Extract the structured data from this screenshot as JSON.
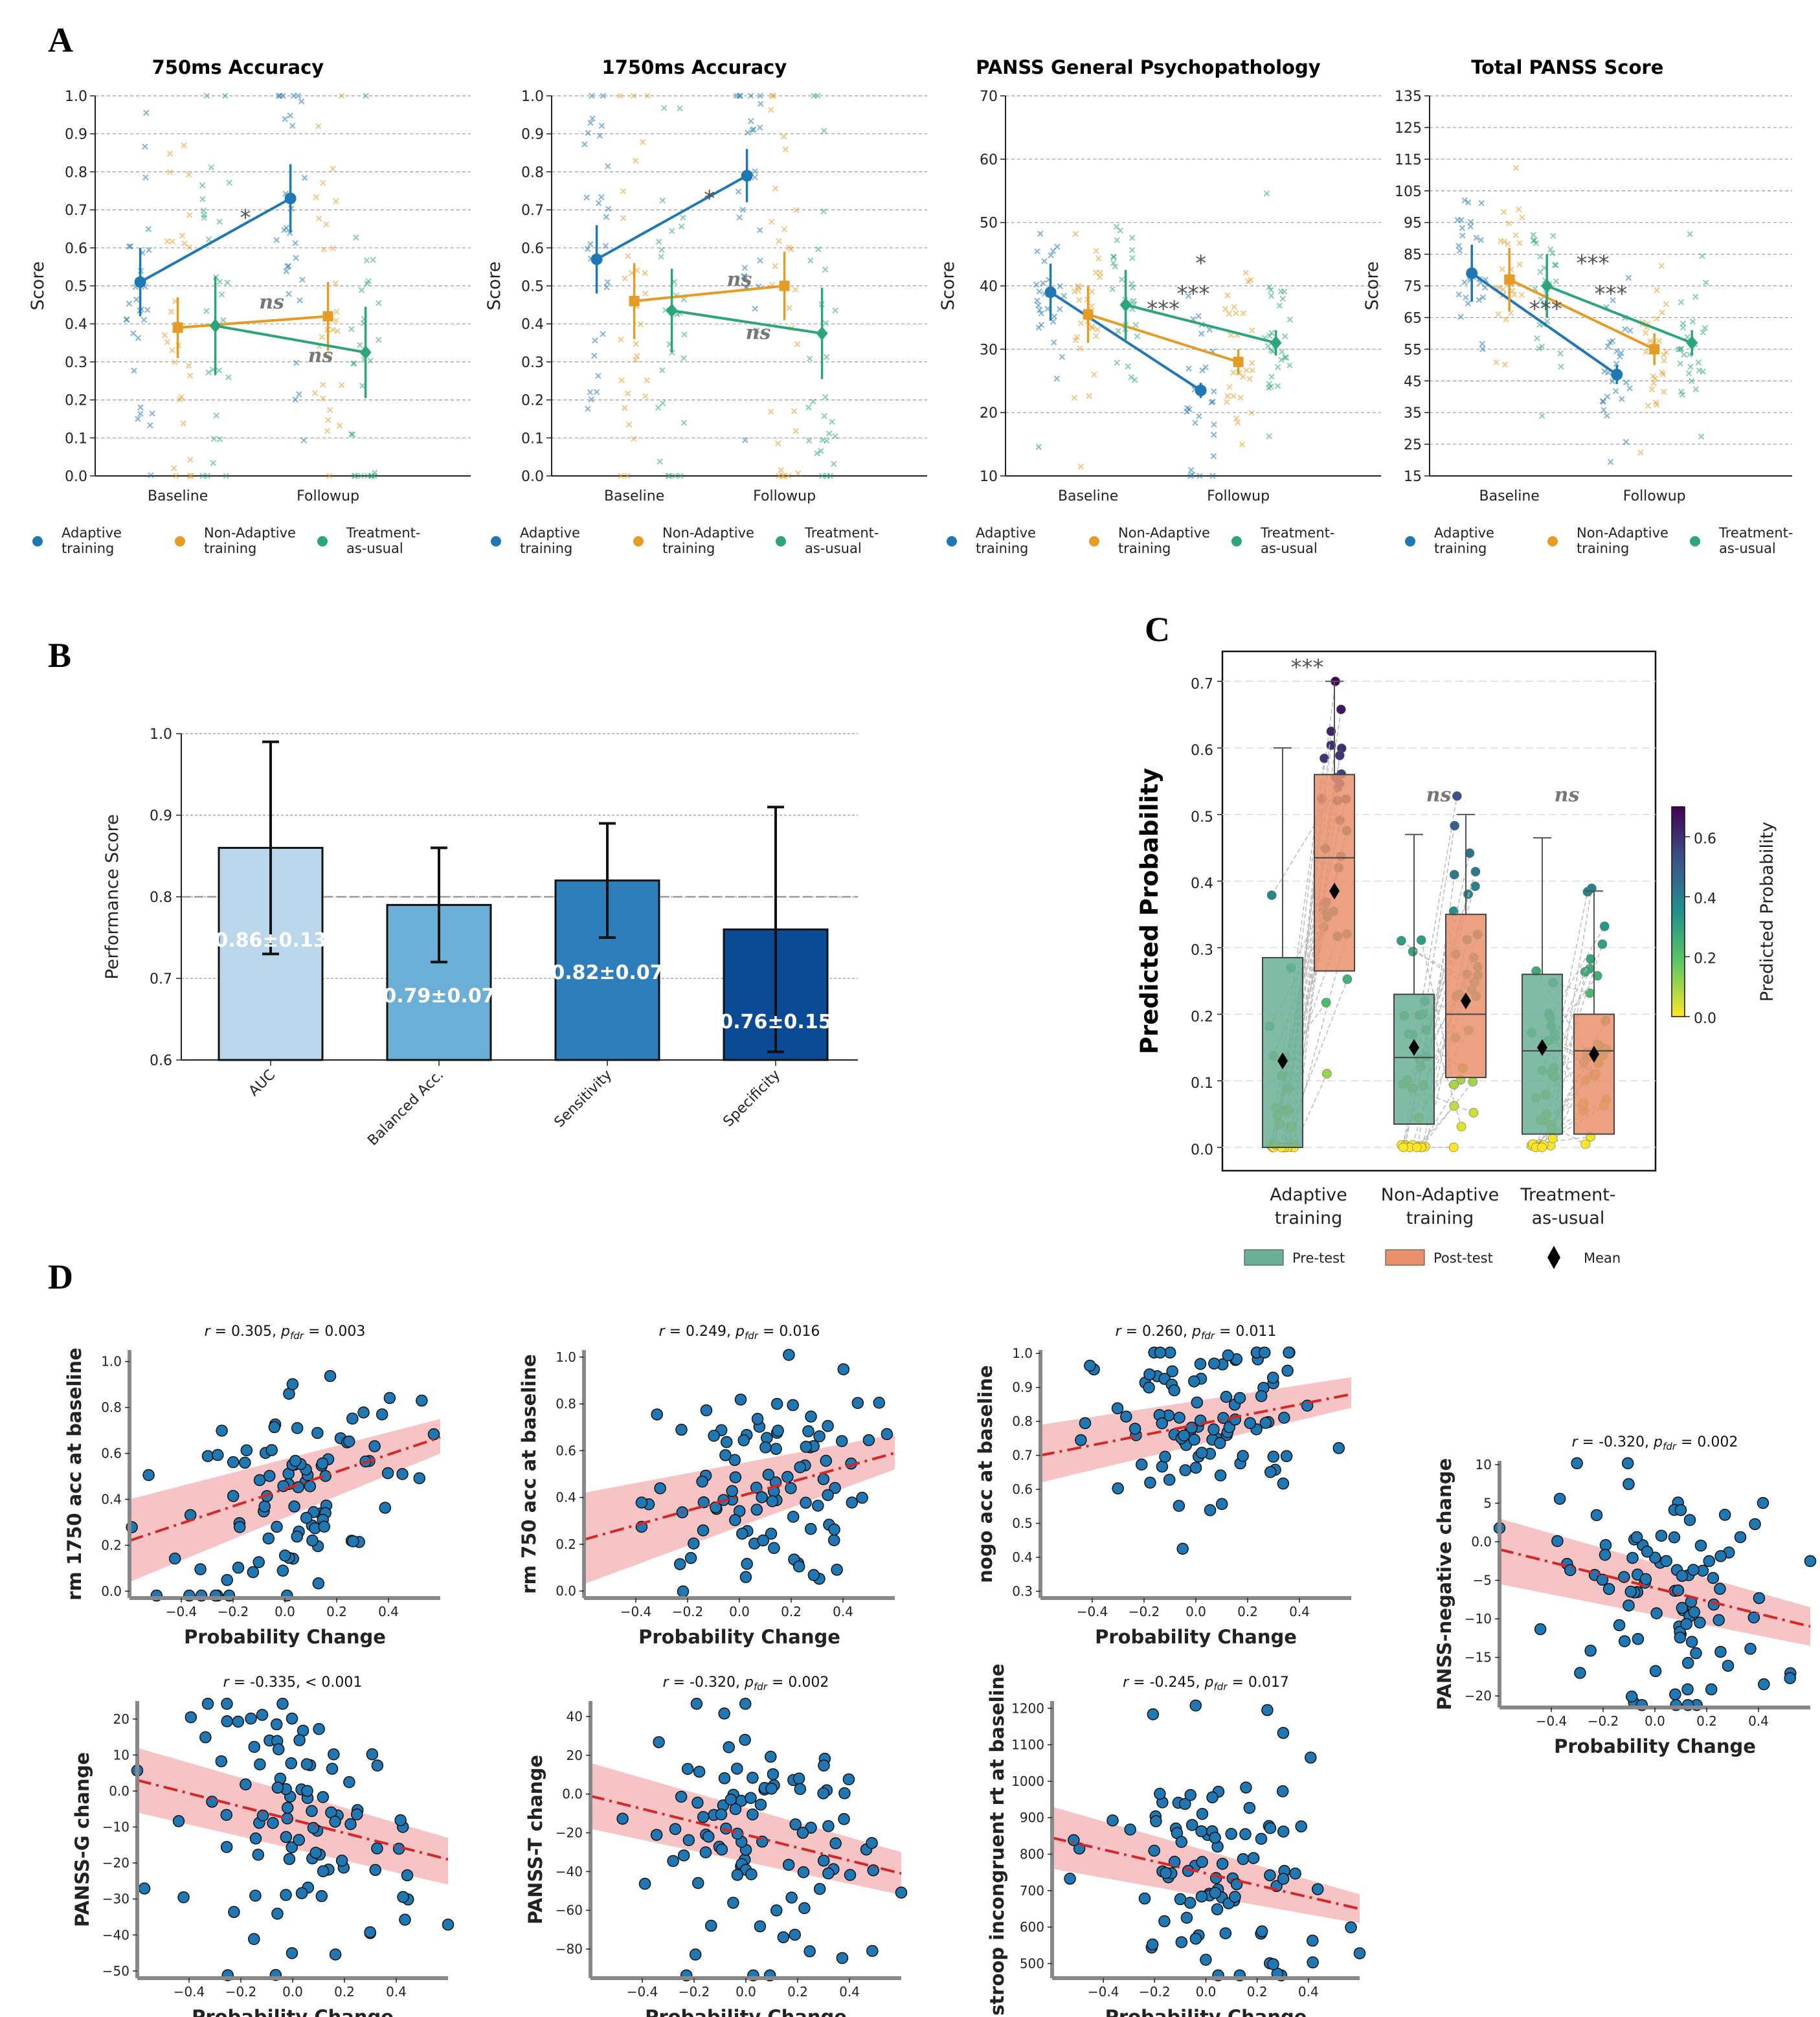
{
  "colors": {
    "adaptive": "#1f77b4",
    "nonadaptive": "#e69c24",
    "tau": "#2ca57a",
    "pretest_box": "#6aaf96",
    "posttest_box": "#e8906c",
    "reg_line": "#d62728",
    "reg_band": "#f5b5b8",
    "scatter_fill": "#1f77b4",
    "bar_colors": [
      "#bad6eb",
      "#6baed6",
      "#2f7ebc",
      "#0b4a94"
    ]
  },
  "panel_letters": {
    "a": "A",
    "b": "B",
    "c": "C",
    "d": "D"
  },
  "legend_a": [
    "Adaptive training",
    "Non-Adaptive training",
    "Treatment-as-usual"
  ],
  "chart_data": [
    {
      "id": "A1",
      "type": "line",
      "title": "750ms Accuracy",
      "ylabel": "Score",
      "categories": [
        "Baseline",
        "Followup"
      ],
      "ylim": [
        0,
        1.0
      ],
      "yticks": [
        0.0,
        0.1,
        0.2,
        0.3,
        0.4,
        0.5,
        0.6,
        0.7,
        0.8,
        0.9,
        1.0
      ],
      "series": [
        {
          "name": "Adaptive training",
          "values": [
            0.51,
            0.73
          ],
          "err": [
            0.09,
            0.09
          ],
          "marker": "circle"
        },
        {
          "name": "Non-Adaptive training",
          "values": [
            0.39,
            0.42
          ],
          "err": [
            0.08,
            0.09
          ],
          "marker": "square"
        },
        {
          "name": "Treatment-as-usual",
          "values": [
            0.395,
            0.325
          ],
          "err": [
            0.13,
            0.12
          ],
          "marker": "diamond"
        }
      ],
      "annotations": [
        "*",
        "ns",
        "ns"
      ]
    },
    {
      "id": "A2",
      "type": "line",
      "title": "1750ms Accuracy",
      "ylabel": "Score",
      "categories": [
        "Baseline",
        "Followup"
      ],
      "ylim": [
        0,
        1.0
      ],
      "yticks": [
        0.0,
        0.1,
        0.2,
        0.3,
        0.4,
        0.5,
        0.6,
        0.7,
        0.8,
        0.9,
        1.0
      ],
      "series": [
        {
          "name": "Adaptive training",
          "values": [
            0.57,
            0.79
          ],
          "err": [
            0.09,
            0.07
          ],
          "marker": "circle"
        },
        {
          "name": "Non-Adaptive training",
          "values": [
            0.46,
            0.5
          ],
          "err": [
            0.1,
            0.09
          ],
          "marker": "square"
        },
        {
          "name": "Treatment-as-usual",
          "values": [
            0.435,
            0.375
          ],
          "err": [
            0.11,
            0.12
          ],
          "marker": "diamond"
        }
      ],
      "annotations": [
        "*",
        "ns",
        "ns"
      ]
    },
    {
      "id": "A3",
      "type": "line",
      "title": "PANSS General Psychopathology",
      "ylabel": "Score",
      "categories": [
        "Baseline",
        "Followup"
      ],
      "ylim": [
        10,
        70
      ],
      "yticks": [
        10,
        20,
        30,
        40,
        50,
        60,
        70
      ],
      "series": [
        {
          "name": "Adaptive training",
          "values": [
            39,
            23.5
          ],
          "err": [
            4.5,
            1.2
          ],
          "marker": "circle"
        },
        {
          "name": "Non-Adaptive training",
          "values": [
            35.5,
            28
          ],
          "err": [
            4.5,
            2
          ],
          "marker": "square"
        },
        {
          "name": "Treatment-as-usual",
          "values": [
            37,
            31
          ],
          "err": [
            5.5,
            2
          ],
          "marker": "diamond"
        }
      ],
      "annotations": [
        "*",
        "***",
        "***"
      ]
    },
    {
      "id": "A4",
      "type": "line",
      "title": "Total PANSS Score",
      "ylabel": "Score",
      "categories": [
        "Baseline",
        "Followup"
      ],
      "ylim": [
        15,
        135
      ],
      "yticks": [
        15,
        25,
        35,
        45,
        55,
        65,
        75,
        85,
        95,
        105,
        115,
        125,
        135
      ],
      "series": [
        {
          "name": "Adaptive training",
          "values": [
            79,
            47
          ],
          "err": [
            9,
            3
          ],
          "marker": "circle"
        },
        {
          "name": "Non-Adaptive training",
          "values": [
            77,
            55
          ],
          "err": [
            10,
            5
          ],
          "marker": "square"
        },
        {
          "name": "Treatment-as-usual",
          "values": [
            75,
            57
          ],
          "err": [
            10,
            4
          ],
          "marker": "diamond"
        }
      ],
      "annotations": [
        "***",
        "***",
        "***"
      ]
    },
    {
      "id": "B",
      "type": "bar",
      "ylabel": "Performance Score",
      "categories": [
        "AUC",
        "Balanced Acc.",
        "Sensitivity",
        "Specificity"
      ],
      "values": [
        0.86,
        0.79,
        0.82,
        0.76
      ],
      "err": [
        0.13,
        0.07,
        0.07,
        0.15
      ],
      "labels": [
        "0.86±0.13",
        "0.79±0.07",
        "0.82±0.07",
        "0.76±0.15"
      ],
      "ylim": [
        0.6,
        1.0
      ],
      "yticks": [
        0.6,
        0.7,
        0.8,
        0.9,
        1.0
      ],
      "refline": 0.8
    },
    {
      "id": "C",
      "type": "box",
      "ylabel": "Predicted Probability",
      "categories": [
        "Adaptive training",
        "Non-Adaptive training",
        "Treatment-as-usual"
      ],
      "series": [
        {
          "name": "Pre-test",
          "q1": [
            0.0,
            0.035,
            0.02
          ],
          "median": [
            0.0,
            0.135,
            0.145
          ],
          "q3": [
            0.285,
            0.23,
            0.26
          ],
          "lo": [
            0.0,
            0.0,
            0.0
          ],
          "hi": [
            0.6,
            0.47,
            0.465
          ],
          "mean": [
            0.13,
            0.15,
            0.15
          ]
        },
        {
          "name": "Post-test",
          "q1": [
            0.265,
            0.105,
            0.02
          ],
          "median": [
            0.435,
            0.2,
            0.145
          ],
          "q3": [
            0.56,
            0.35,
            0.2
          ],
          "lo": [
            0.0,
            0.0,
            0.0
          ],
          "hi": [
            0.7,
            0.5,
            0.385
          ],
          "mean": [
            0.385,
            0.22,
            0.14
          ]
        }
      ],
      "ylim": [
        -0.035,
        0.745
      ],
      "yticks": [
        0.0,
        0.1,
        0.2,
        0.3,
        0.4,
        0.5,
        0.6,
        0.7
      ],
      "annotations": [
        "***",
        "ns",
        "ns"
      ],
      "legend": [
        "Pre-test",
        "Post-test",
        "Mean"
      ],
      "colorbar": {
        "label": "Predicted Probability",
        "ticks": [
          0.0,
          0.2,
          0.4,
          0.6
        ],
        "range": [
          0.0,
          0.7
        ]
      }
    },
    {
      "id": "D1",
      "type": "scatter",
      "xlabel": "Probability Change",
      "ylabel": "rm 1750 acc at baseline",
      "stat": {
        "r": "r = 0.305,",
        "p": "= 0.003"
      },
      "xlim": [
        -0.6,
        0.6
      ],
      "xticks": [
        -0.4,
        -0.2,
        0.0,
        0.2,
        0.4
      ],
      "ylim": [
        -0.03,
        1.05
      ],
      "yticks": [
        0.0,
        0.2,
        0.4,
        0.6,
        0.8,
        1.0
      ],
      "fit": {
        "y_at_xmin": 0.22,
        "y_at_xmax": 0.67,
        "band_lo": [
          0.04,
          0.6
        ],
        "band_hi": [
          0.4,
          0.75
        ]
      }
    },
    {
      "id": "D2",
      "type": "scatter",
      "xlabel": "Probability Change",
      "ylabel": "rm 750 acc at baseline",
      "stat": {
        "r": "r = 0.249,",
        "p": "= 0.016"
      },
      "xlim": [
        -0.6,
        0.6
      ],
      "xticks": [
        -0.4,
        -0.2,
        0.0,
        0.2,
        0.4
      ],
      "ylim": [
        -0.03,
        1.03
      ],
      "yticks": [
        0.0,
        0.2,
        0.4,
        0.6,
        0.8,
        1.0
      ],
      "fit": {
        "y_at_xmin": 0.22,
        "y_at_xmax": 0.59,
        "band_lo": [
          0.03,
          0.52
        ],
        "band_hi": [
          0.42,
          0.67
        ]
      }
    },
    {
      "id": "D3",
      "type": "scatter",
      "xlabel": "Probability Change",
      "ylabel": "nogo acc  at baseline",
      "stat": {
        "r": "r = 0.260,",
        "p": "= 0.011"
      },
      "xlim": [
        -0.6,
        0.6
      ],
      "xticks": [
        -0.4,
        -0.2,
        0.0,
        0.2,
        0.4
      ],
      "ylim": [
        0.28,
        1.01
      ],
      "yticks": [
        0.3,
        0.4,
        0.5,
        0.6,
        0.7,
        0.8,
        0.9,
        1.0
      ],
      "fit": {
        "y_at_xmin": 0.7,
        "y_at_xmax": 0.88,
        "band_lo": [
          0.62,
          0.84
        ],
        "band_hi": [
          0.79,
          0.93
        ]
      }
    },
    {
      "id": "D4",
      "type": "scatter",
      "xlabel": "Probability Change",
      "ylabel": "PANSS-negative change",
      "stat": {
        "r": "r = -0.320,",
        "p": "= 0.002"
      },
      "xlim": [
        -0.6,
        0.6
      ],
      "xticks": [
        -0.4,
        -0.2,
        0.0,
        0.2,
        0.4
      ],
      "ylim": [
        -21.5,
        10.5
      ],
      "yticks": [
        -20,
        -15,
        -10,
        -5,
        0,
        5,
        10
      ],
      "fit": {
        "y_at_xmin": -1,
        "y_at_xmax": -11,
        "band_lo": [
          -5.5,
          -13.5
        ],
        "band_hi": [
          3,
          -8.5
        ]
      }
    },
    {
      "id": "D5",
      "type": "scatter",
      "xlabel": "Probability Change",
      "ylabel": "PANSS-G change",
      "stat": {
        "r": "r = -0.335,",
        "p": "< 0.001"
      },
      "xlim": [
        -0.6,
        0.6
      ],
      "xticks": [
        -0.4,
        -0.2,
        0.0,
        0.2,
        0.4
      ],
      "ylim": [
        -52,
        25
      ],
      "yticks": [
        -50,
        -40,
        -30,
        -20,
        -10,
        0,
        10,
        20
      ],
      "fit": {
        "y_at_xmin": 3,
        "y_at_xmax": -19,
        "band_lo": [
          -6,
          -26
        ],
        "band_hi": [
          12,
          -13
        ]
      }
    },
    {
      "id": "D6",
      "type": "scatter",
      "xlabel": "Probability Change",
      "ylabel": "PANSS-T change",
      "stat": {
        "r": "r = -0.320,",
        "p": "= 0.002"
      },
      "xlim": [
        -0.6,
        0.6
      ],
      "xticks": [
        -0.4,
        -0.2,
        0.0,
        0.2,
        0.4
      ],
      "ylim": [
        -95,
        48
      ],
      "yticks": [
        -80,
        -60,
        -40,
        -20,
        0,
        20,
        40
      ],
      "fit": {
        "y_at_xmin": -1,
        "y_at_xmax": -41,
        "band_lo": [
          -18,
          -52
        ],
        "band_hi": [
          16,
          -30
        ]
      }
    },
    {
      "id": "D7",
      "type": "scatter",
      "xlabel": "Probability Change",
      "ylabel": "stroop incongruent rt  at baseline",
      "stat": {
        "r": "r = -0.245,",
        "p": "= 0.017"
      },
      "xlim": [
        -0.6,
        0.6
      ],
      "xticks": [
        -0.4,
        -0.2,
        0.0,
        0.2,
        0.4
      ],
      "ylim": [
        460,
        1220
      ],
      "yticks": [
        500,
        600,
        700,
        800,
        900,
        1000,
        1100,
        1200
      ],
      "fit": {
        "y_at_xmin": 845,
        "y_at_xmax": 650,
        "band_lo": [
          760,
          610
        ],
        "band_hi": [
          930,
          690
        ]
      }
    }
  ]
}
